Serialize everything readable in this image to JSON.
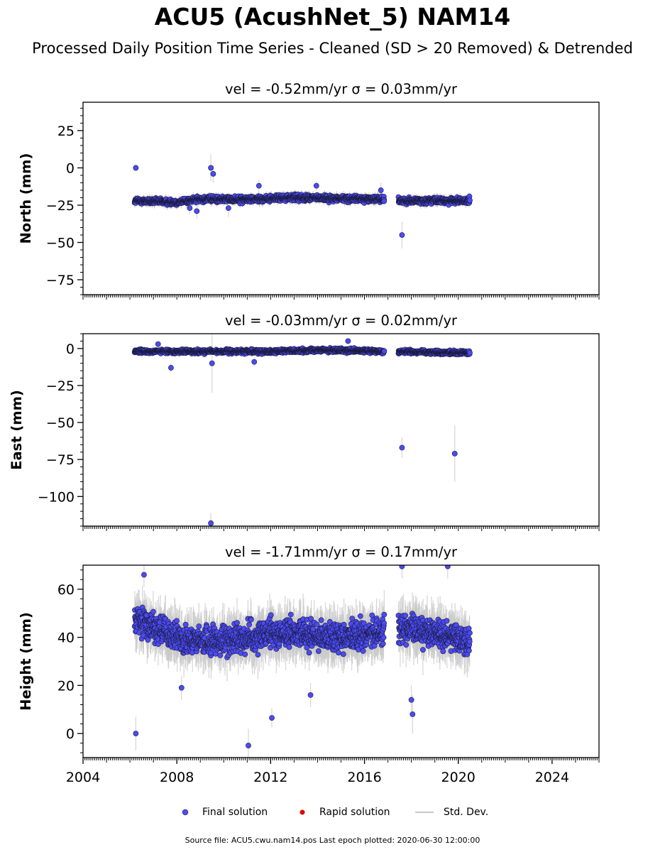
{
  "figure": {
    "title": "ACU5 (AcushNet_5) NAM14",
    "subtitle": "Processed Daily Position Time Series - Cleaned (SD > 20 Removed) & Detrended",
    "footer": "Source file: ACU5.cwu.nam14.pos  Last epoch plotted: 2020-06-30 12:00:00"
  },
  "legend": {
    "final": "Final solution",
    "rapid": "Rapid solution",
    "std": "Std. Dev."
  },
  "colors": {
    "final": "#4b4bf5",
    "rapid": "#e00000",
    "std": "#c8c8c8"
  },
  "chart_data": [
    {
      "type": "scatter",
      "title": "vel = -0.52mm/yr   σ = 0.03mm/yr",
      "ylabel": "North (mm)",
      "xlim": [
        2004,
        2026
      ],
      "ylim": [
        -85,
        44
      ],
      "yticks": [
        25,
        0,
        -25,
        -50,
        -75
      ],
      "xticks": [
        2004,
        2008,
        2012,
        2016,
        2020,
        2024
      ],
      "baseline": [
        [
          2006.2,
          -22
        ],
        [
          2008.0,
          -23
        ],
        [
          2009.0,
          -21
        ],
        [
          2011.0,
          -21
        ],
        [
          2013.0,
          -20
        ],
        [
          2016.8,
          -21
        ],
        [
          2017.5,
          -22
        ],
        [
          2020.5,
          -22
        ]
      ],
      "spread": 3,
      "outliers": [
        {
          "x": 2006.25,
          "y": 0,
          "sd": 2
        },
        {
          "x": 2009.45,
          "y": 0,
          "sd": 9
        },
        {
          "x": 2009.55,
          "y": -4,
          "sd": 6
        },
        {
          "x": 2008.85,
          "y": -29,
          "sd": 5
        },
        {
          "x": 2008.55,
          "y": -27,
          "sd": 4
        },
        {
          "x": 2010.2,
          "y": -27,
          "sd": 6
        },
        {
          "x": 2011.5,
          "y": -12,
          "sd": 4
        },
        {
          "x": 2013.95,
          "y": -12,
          "sd": 3
        },
        {
          "x": 2016.7,
          "y": -15,
          "sd": 5
        },
        {
          "x": 2017.6,
          "y": -45,
          "sd": 9
        }
      ]
    },
    {
      "type": "scatter",
      "title": "vel = -0.03mm/yr   σ = 0.02mm/yr",
      "ylabel": "East (mm)",
      "xlim": [
        2004,
        2026
      ],
      "ylim": [
        -120,
        10
      ],
      "yticks": [
        0,
        -25,
        -50,
        -75,
        -100
      ],
      "xticks": [
        2004,
        2008,
        2012,
        2016,
        2020,
        2024
      ],
      "baseline": [
        [
          2006.2,
          -2
        ],
        [
          2009.0,
          -2
        ],
        [
          2012.0,
          -2
        ],
        [
          2014.0,
          -1
        ],
        [
          2016.8,
          -2
        ],
        [
          2017.5,
          -2
        ],
        [
          2020.5,
          -3
        ]
      ],
      "spread": 2,
      "outliers": [
        {
          "x": 2007.75,
          "y": -13,
          "sd": 3
        },
        {
          "x": 2009.5,
          "y": -10,
          "sd": 20
        },
        {
          "x": 2009.45,
          "y": -118,
          "sd": 7
        },
        {
          "x": 2011.3,
          "y": -9,
          "sd": 3
        },
        {
          "x": 2015.3,
          "y": 5,
          "sd": 2
        },
        {
          "x": 2017.6,
          "y": -67,
          "sd": 7
        },
        {
          "x": 2019.85,
          "y": -71,
          "sd": 19
        },
        {
          "x": 2007.2,
          "y": 3,
          "sd": 2
        }
      ]
    },
    {
      "type": "scatter",
      "title": "vel = -1.71mm/yr   σ = 0.17mm/yr",
      "ylabel": "Height (mm)",
      "xlim": [
        2004,
        2026
      ],
      "ylim": [
        -10,
        70
      ],
      "yticks": [
        60,
        40,
        20,
        0
      ],
      "xticks": [
        2004,
        2008,
        2012,
        2016,
        2020,
        2024
      ],
      "baseline": [
        [
          2006.2,
          48
        ],
        [
          2007.0,
          44
        ],
        [
          2008.0,
          40
        ],
        [
          2009.5,
          38
        ],
        [
          2011.0,
          40
        ],
        [
          2013.0,
          42
        ],
        [
          2015.0,
          40
        ],
        [
          2016.8,
          42
        ],
        [
          2017.5,
          44
        ],
        [
          2019.0,
          42
        ],
        [
          2020.5,
          38
        ]
      ],
      "spread": 9,
      "outliers": [
        {
          "x": 2006.25,
          "y": 0,
          "sd": 7
        },
        {
          "x": 2011.05,
          "y": -5,
          "sd": 7
        },
        {
          "x": 2012.05,
          "y": 6.5,
          "sd": 4
        },
        {
          "x": 2018.05,
          "y": 8,
          "sd": 8
        },
        {
          "x": 2018.0,
          "y": 14,
          "sd": 6
        },
        {
          "x": 2017.6,
          "y": 69.5,
          "sd": 5
        },
        {
          "x": 2019.55,
          "y": 69.5,
          "sd": 5
        },
        {
          "x": 2006.6,
          "y": 66,
          "sd": 5
        },
        {
          "x": 2008.2,
          "y": 19,
          "sd": 5
        },
        {
          "x": 2013.7,
          "y": 16,
          "sd": 5
        }
      ]
    }
  ]
}
